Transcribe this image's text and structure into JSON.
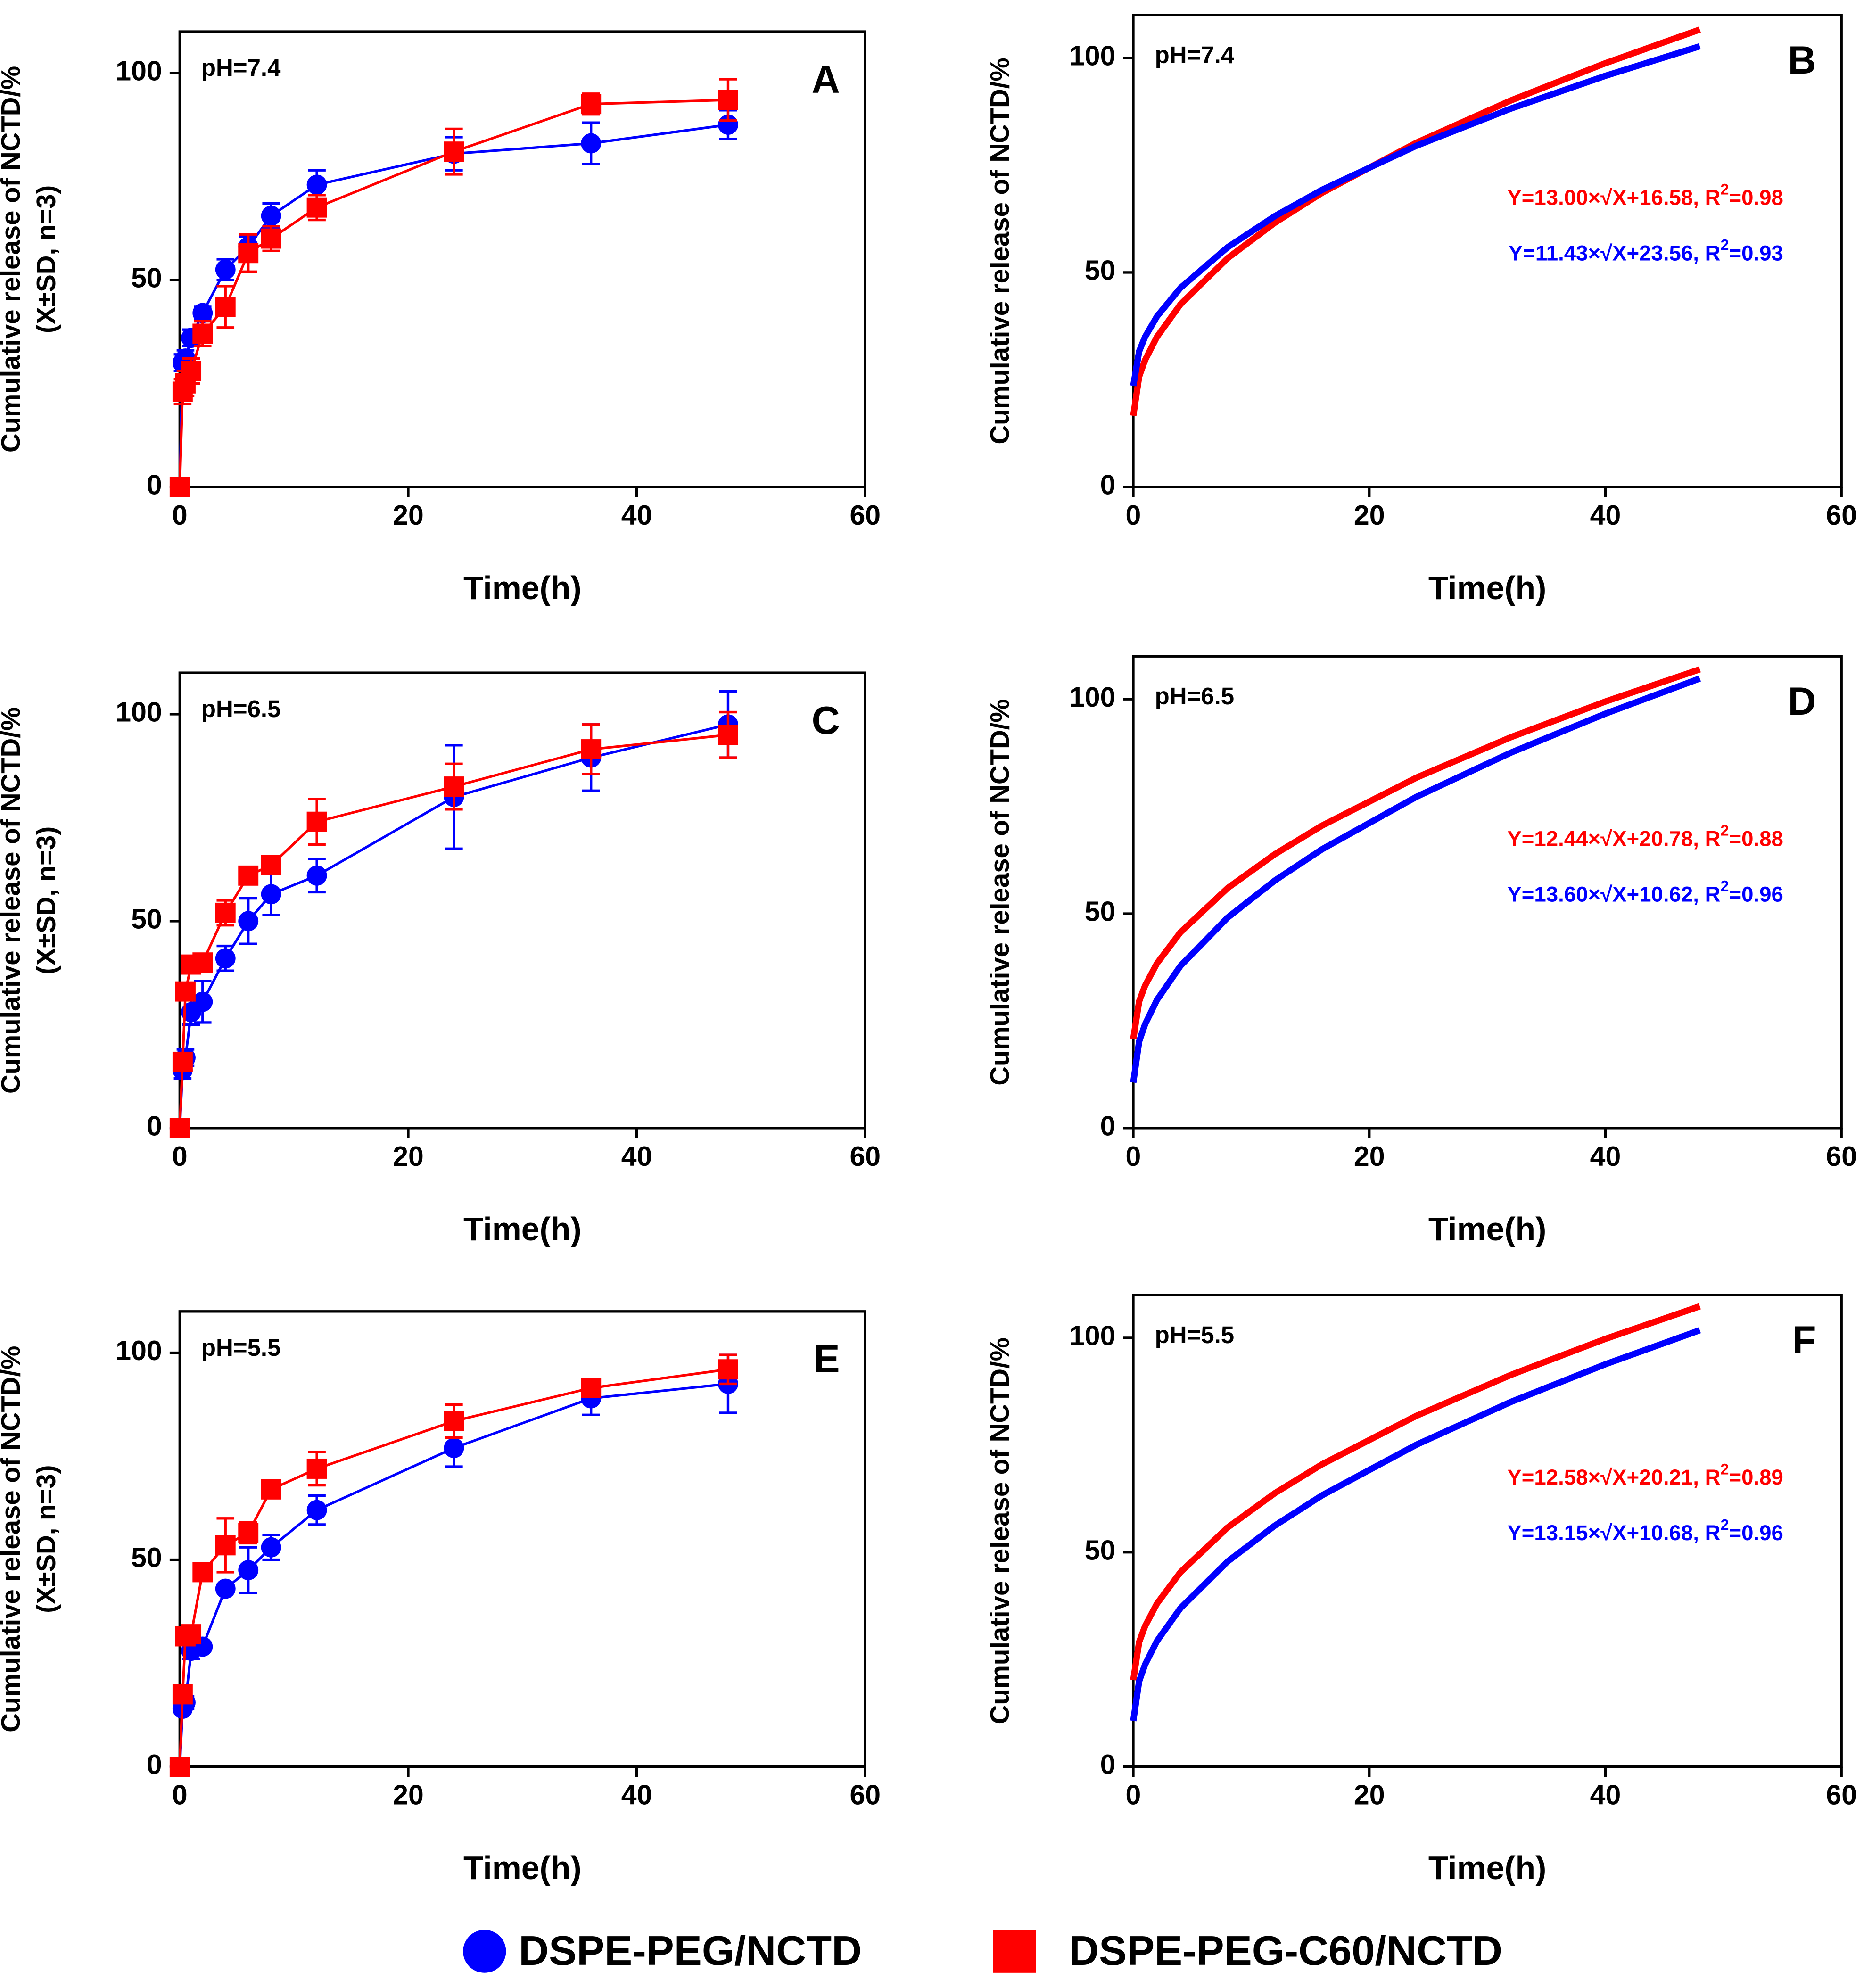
{
  "chart_data": [
    {
      "type": "line",
      "panel": "A",
      "annotation": "pH=7.4",
      "xlabel": "Time(h)",
      "ylabel": [
        "Cumulative release of NCTD/%",
        "(X±SD, n=3)"
      ],
      "x": [
        0,
        0.25,
        0.5,
        1,
        2,
        4,
        6,
        8,
        12,
        24,
        36,
        48
      ],
      "xlim": [
        0,
        60
      ],
      "xticks": [
        0,
        20,
        40,
        60
      ],
      "ylim": [
        0,
        110
      ],
      "yticks": [
        0,
        50,
        100
      ],
      "series": [
        {
          "name": "DSPE-PEG/NCTD",
          "color": "#0000ff",
          "marker": "circle",
          "values": [
            0,
            30,
            31,
            36,
            42,
            52.5,
            58,
            65.5,
            73,
            80.5,
            83,
            87.5
          ],
          "errors": [
            0,
            2,
            2,
            2,
            1.5,
            2.5,
            2.5,
            3,
            3.5,
            4,
            5,
            3.5
          ]
        },
        {
          "name": "DSPE-PEG-C60/NCTD",
          "color": "#ff0000",
          "marker": "square",
          "values": [
            0,
            23,
            25,
            28,
            37,
            43.5,
            56.5,
            60,
            67.5,
            81,
            92.5,
            93.5
          ],
          "errors": [
            0,
            3,
            3,
            3,
            3,
            5,
            4.5,
            3,
            3,
            5.5,
            2.5,
            5
          ]
        }
      ]
    },
    {
      "type": "line",
      "panel": "B",
      "annotation": "pH=7.4",
      "xlabel": "Time(h)",
      "ylabel": [
        "Cumulative release of NCTD/%"
      ],
      "x": [
        0,
        0.5,
        1,
        2,
        4,
        8,
        12,
        16,
        24,
        32,
        40,
        48
      ],
      "xlim": [
        0,
        60
      ],
      "xticks": [
        0,
        20,
        40,
        60
      ],
      "ylim": [
        0,
        110
      ],
      "yticks": [
        0,
        50,
        100
      ],
      "series": [
        {
          "color": "#ff0000",
          "equation": [
            "Y=13.00×√X+16.58, R",
            "2",
            "=0.98"
          ],
          "values": [
            16.58,
            25.77,
            29.58,
            34.96,
            42.58,
            53.35,
            61.61,
            68.58,
            80.27,
            90.12,
            98.8,
            106.65
          ]
        },
        {
          "color": "#0000ff",
          "equation": [
            "Y=11.43×√X+23.56, R",
            "2",
            "=0.93"
          ],
          "values": [
            23.56,
            31.64,
            34.99,
            39.72,
            46.42,
            55.89,
            63.15,
            69.28,
            79.56,
            88.22,
            95.85,
            102.75
          ]
        }
      ]
    },
    {
      "type": "line",
      "panel": "C",
      "annotation": "pH=6.5",
      "xlabel": "Time(h)",
      "ylabel": [
        "Cumulative release of NCTD/%",
        "(X±SD, n=3)"
      ],
      "x": [
        0,
        0.25,
        0.5,
        1,
        2,
        4,
        6,
        8,
        12,
        24,
        36,
        48
      ],
      "xlim": [
        0,
        60
      ],
      "xticks": [
        0,
        20,
        40,
        60
      ],
      "ylim": [
        0,
        110
      ],
      "yticks": [
        0,
        50,
        100
      ],
      "series": [
        {
          "color": "#0000ff",
          "marker": "circle",
          "values": [
            0,
            14,
            17,
            28,
            30.5,
            41,
            50,
            56.5,
            61,
            80,
            89.5,
            97.5
          ],
          "errors": [
            0,
            2,
            2,
            3,
            5,
            3,
            5.5,
            5,
            4,
            12.5,
            8,
            8
          ]
        },
        {
          "color": "#ff0000",
          "marker": "square",
          "values": [
            0,
            16,
            33,
            39.5,
            40,
            52,
            61,
            63.5,
            74,
            82.5,
            91.5,
            95
          ],
          "errors": [
            0,
            1,
            2,
            2,
            2,
            3,
            2,
            2,
            5.5,
            5.5,
            6,
            5.5
          ]
        }
      ]
    },
    {
      "type": "line",
      "panel": "D",
      "annotation": "pH=6.5",
      "xlabel": "Time(h)",
      "ylabel": [
        "Cumulative release of NCTD/%"
      ],
      "x": [
        0,
        0.5,
        1,
        2,
        4,
        8,
        12,
        16,
        24,
        32,
        40,
        48
      ],
      "xlim": [
        0,
        60
      ],
      "xticks": [
        0,
        20,
        40,
        60
      ],
      "ylim": [
        0,
        110
      ],
      "yticks": [
        0,
        50,
        100
      ],
      "series": [
        {
          "color": "#ff0000",
          "equation": [
            "Y=12.44×√X+20.78, R",
            "2",
            "=0.88"
          ],
          "values": [
            20.78,
            29.58,
            33.22,
            38.37,
            45.66,
            55.97,
            63.87,
            70.54,
            81.72,
            91.15,
            99.46,
            106.97
          ]
        },
        {
          "color": "#0000ff",
          "equation": [
            "Y=13.60×√X+10.62, R",
            "2",
            "=0.96"
          ],
          "values": [
            10.62,
            20.24,
            24.22,
            29.85,
            37.82,
            49.09,
            57.73,
            65.02,
            77.25,
            87.55,
            96.63,
            104.84
          ]
        }
      ]
    },
    {
      "type": "line",
      "panel": "E",
      "annotation": "pH=5.5",
      "xlabel": "Time(h)",
      "ylabel": [
        "Cumulative release of NCTD/%",
        "(X±SD, n=3)"
      ],
      "x": [
        0,
        0.25,
        0.5,
        1,
        2,
        4,
        6,
        8,
        12,
        24,
        36,
        48
      ],
      "xlim": [
        0,
        60
      ],
      "xticks": [
        0,
        20,
        40,
        60
      ],
      "ylim": [
        0,
        110
      ],
      "yticks": [
        0,
        50,
        100
      ],
      "series": [
        {
          "color": "#0000ff",
          "marker": "circle",
          "values": [
            0,
            14,
            15.5,
            28,
            29,
            43,
            47.5,
            53,
            62,
            77,
            89,
            92.5
          ],
          "errors": [
            0,
            1,
            1.5,
            2,
            1,
            1,
            5.5,
            3,
            3.5,
            4.5,
            4,
            7
          ]
        },
        {
          "color": "#ff0000",
          "marker": "square",
          "values": [
            0,
            17.5,
            31.5,
            32,
            47,
            53.5,
            56.5,
            67,
            72,
            83.5,
            91.5,
            96
          ],
          "errors": [
            0,
            2,
            2,
            2,
            2,
            6.5,
            2.5,
            1.5,
            4,
            4,
            2,
            3.5
          ]
        }
      ]
    },
    {
      "type": "line",
      "panel": "F",
      "annotation": "pH=5.5",
      "xlabel": "Time(h)",
      "ylabel": [
        "Cumulative release of NCTD/%"
      ],
      "x": [
        0,
        0.5,
        1,
        2,
        4,
        8,
        12,
        16,
        24,
        32,
        40,
        48
      ],
      "xlim": [
        0,
        60
      ],
      "xticks": [
        0,
        20,
        40,
        60
      ],
      "ylim": [
        0,
        110
      ],
      "yticks": [
        0,
        50,
        100
      ],
      "series": [
        {
          "color": "#ff0000",
          "equation": [
            "Y=12.58×√X+20.21, R",
            "2",
            "=0.89"
          ],
          "values": [
            20.21,
            29.11,
            32.79,
            38.0,
            45.37,
            55.79,
            63.79,
            70.53,
            81.84,
            91.37,
            99.77,
            107.37
          ]
        },
        {
          "color": "#0000ff",
          "equation": [
            "Y=13.15×√X+10.68, R",
            "2",
            "=0.96"
          ],
          "values": [
            10.68,
            19.98,
            23.83,
            29.28,
            36.98,
            47.87,
            56.23,
            63.28,
            75.1,
            85.07,
            93.85,
            101.79
          ]
        }
      ]
    }
  ]
}
